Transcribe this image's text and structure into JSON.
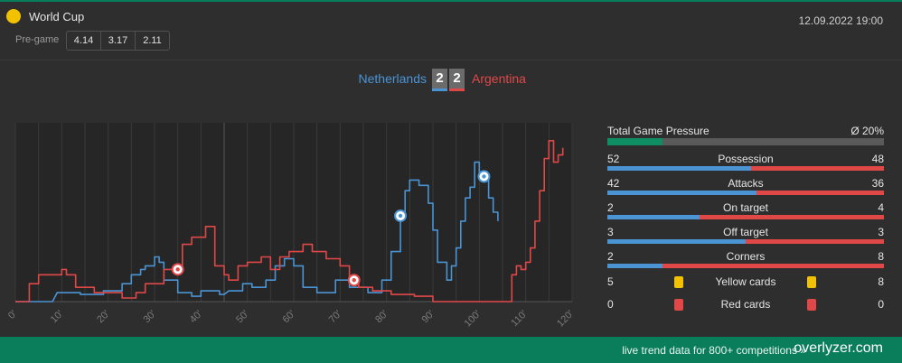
{
  "header": {
    "competition": "World Cup",
    "datetime": "12.09.2022 19:00",
    "pregame_label": "Pre-game",
    "odds": [
      "4.14",
      "3.17",
      "2.11"
    ]
  },
  "match": {
    "home_team": "Netherlands",
    "away_team": "Argentina",
    "home_score": "2",
    "away_score": "2"
  },
  "colors": {
    "home": "#4a94d4",
    "away": "#e04848",
    "accent": "#0a7d5a",
    "yellow": "#f2c200"
  },
  "chart_data": {
    "type": "line",
    "xlabel": "",
    "ylabel": "",
    "xlim": [
      0,
      120
    ],
    "x_ticks": [
      "0'",
      "10'",
      "20'",
      "30'",
      "40'",
      "50'",
      "60'",
      "70'",
      "80'",
      "90'",
      "100'",
      "110'",
      "120'"
    ],
    "break_at": 45,
    "series": [
      {
        "name": "Netherlands",
        "color": "#4a94d4",
        "points": [
          [
            0,
            0
          ],
          [
            8,
            0
          ],
          [
            9,
            5
          ],
          [
            14,
            5
          ],
          [
            14,
            4
          ],
          [
            19,
            4
          ],
          [
            19,
            6
          ],
          [
            23,
            6
          ],
          [
            23,
            10
          ],
          [
            25,
            10
          ],
          [
            25,
            15
          ],
          [
            27,
            15
          ],
          [
            27,
            18
          ],
          [
            28,
            18
          ],
          [
            28,
            20
          ],
          [
            30,
            20
          ],
          [
            30,
            25
          ],
          [
            31,
            25
          ],
          [
            31,
            22
          ],
          [
            32,
            22
          ],
          [
            32,
            12
          ],
          [
            35,
            12
          ],
          [
            35,
            5
          ],
          [
            38,
            5
          ],
          [
            38,
            3
          ],
          [
            40,
            3
          ],
          [
            40,
            6
          ],
          [
            44,
            6
          ],
          [
            44,
            4
          ],
          [
            45,
            4
          ],
          [
            46,
            6
          ],
          [
            49,
            6
          ],
          [
            49,
            10
          ],
          [
            51,
            10
          ],
          [
            51,
            8
          ],
          [
            54,
            8
          ],
          [
            54,
            12
          ],
          [
            56,
            12
          ],
          [
            56,
            20
          ],
          [
            58,
            20
          ],
          [
            58,
            24
          ],
          [
            60,
            24
          ],
          [
            60,
            20
          ],
          [
            62,
            20
          ],
          [
            62,
            8
          ],
          [
            65,
            8
          ],
          [
            65,
            5
          ],
          [
            69,
            5
          ],
          [
            69,
            12
          ],
          [
            72,
            12
          ],
          [
            72,
            8
          ],
          [
            76,
            8
          ],
          [
            76,
            5
          ],
          [
            79,
            5
          ],
          [
            79,
            12
          ],
          [
            81,
            12
          ],
          [
            81,
            28
          ],
          [
            83,
            28
          ],
          [
            83,
            48
          ],
          [
            84,
            48
          ],
          [
            84,
            62
          ],
          [
            85,
            62
          ],
          [
            85,
            68
          ],
          [
            87,
            68
          ],
          [
            87,
            65
          ],
          [
            89,
            65
          ],
          [
            89,
            55
          ],
          [
            90,
            55
          ],
          [
            90,
            40
          ],
          [
            91,
            40
          ],
          [
            91,
            22
          ],
          [
            93,
            22
          ],
          [
            93,
            12
          ],
          [
            94,
            12
          ],
          [
            94,
            20
          ],
          [
            95,
            20
          ],
          [
            95,
            30
          ],
          [
            96,
            30
          ],
          [
            96,
            45
          ],
          [
            97,
            45
          ],
          [
            97,
            58
          ],
          [
            98,
            58
          ],
          [
            98,
            64
          ],
          [
            99,
            64
          ],
          [
            99,
            78
          ],
          [
            100,
            78
          ],
          [
            100,
            70
          ],
          [
            102,
            70
          ],
          [
            102,
            58
          ],
          [
            103,
            58
          ],
          [
            103,
            50
          ],
          [
            104,
            50
          ],
          [
            104,
            45
          ]
        ]
      },
      {
        "name": "Argentina",
        "color": "#e04848",
        "points": [
          [
            0,
            0
          ],
          [
            3,
            0
          ],
          [
            3,
            10
          ],
          [
            5,
            10
          ],
          [
            5,
            15
          ],
          [
            10,
            15
          ],
          [
            10,
            18
          ],
          [
            11,
            18
          ],
          [
            11,
            15
          ],
          [
            13,
            15
          ],
          [
            13,
            8
          ],
          [
            17,
            8
          ],
          [
            17,
            5
          ],
          [
            23,
            5
          ],
          [
            23,
            2
          ],
          [
            26,
            2
          ],
          [
            26,
            5
          ],
          [
            28,
            5
          ],
          [
            28,
            10
          ],
          [
            32,
            10
          ],
          [
            32,
            18
          ],
          [
            36,
            18
          ],
          [
            36,
            32
          ],
          [
            38,
            32
          ],
          [
            38,
            36
          ],
          [
            41,
            36
          ],
          [
            41,
            42
          ],
          [
            43,
            42
          ],
          [
            43,
            20
          ],
          [
            45,
            20
          ],
          [
            45,
            15
          ],
          [
            46,
            15
          ],
          [
            46,
            12
          ],
          [
            48,
            12
          ],
          [
            48,
            20
          ],
          [
            50,
            20
          ],
          [
            50,
            22
          ],
          [
            53,
            22
          ],
          [
            53,
            25
          ],
          [
            55,
            25
          ],
          [
            55,
            18
          ],
          [
            57,
            18
          ],
          [
            57,
            25
          ],
          [
            59,
            25
          ],
          [
            59,
            28
          ],
          [
            62,
            28
          ],
          [
            62,
            32
          ],
          [
            64,
            32
          ],
          [
            64,
            28
          ],
          [
            67,
            28
          ],
          [
            67,
            24
          ],
          [
            70,
            24
          ],
          [
            70,
            20
          ],
          [
            72,
            20
          ],
          [
            72,
            12
          ],
          [
            74,
            12
          ],
          [
            74,
            8
          ],
          [
            77,
            8
          ],
          [
            77,
            6
          ],
          [
            81,
            6
          ],
          [
            81,
            4
          ],
          [
            86,
            4
          ],
          [
            86,
            3
          ],
          [
            90,
            3
          ],
          [
            90,
            0
          ],
          [
            107,
            0
          ],
          [
            107,
            15
          ],
          [
            108,
            15
          ],
          [
            108,
            20
          ],
          [
            109,
            20
          ],
          [
            109,
            18
          ],
          [
            110,
            18
          ],
          [
            110,
            22
          ],
          [
            111,
            22
          ],
          [
            111,
            30
          ],
          [
            112,
            30
          ],
          [
            112,
            45
          ],
          [
            113,
            45
          ],
          [
            113,
            62
          ],
          [
            114,
            62
          ],
          [
            114,
            80
          ],
          [
            115,
            80
          ],
          [
            115,
            90
          ],
          [
            116,
            90
          ],
          [
            116,
            78
          ],
          [
            117,
            78
          ],
          [
            117,
            82
          ],
          [
            118,
            82
          ],
          [
            118,
            86
          ]
        ]
      }
    ],
    "goals": [
      {
        "team": "Argentina",
        "minute": 35
      },
      {
        "team": "Argentina",
        "minute": 73
      },
      {
        "team": "Netherlands",
        "minute": 83
      },
      {
        "team": "Netherlands",
        "minute": 101
      }
    ]
  },
  "stats": {
    "pressure_label": "Total Game Pressure",
    "pressure_value": "Ø 20%",
    "pressure_fraction": 0.2,
    "rows": [
      {
        "label": "Possession",
        "home": "52",
        "away": "48"
      },
      {
        "label": "Attacks",
        "home": "42",
        "away": "36"
      },
      {
        "label": "On target",
        "home": "2",
        "away": "4"
      },
      {
        "label": "Off target",
        "home": "3",
        "away": "3"
      },
      {
        "label": "Corners",
        "home": "2",
        "away": "8"
      }
    ],
    "cards": [
      {
        "label": "Yellow cards",
        "home": "5",
        "away": "8",
        "color": "#f2c200"
      },
      {
        "label": "Red cards",
        "home": "0",
        "away": "0",
        "color": "#e04848"
      }
    ]
  },
  "footer": {
    "text": "live trend data for 800+ competitions »",
    "brand": "overlyzer.com"
  }
}
